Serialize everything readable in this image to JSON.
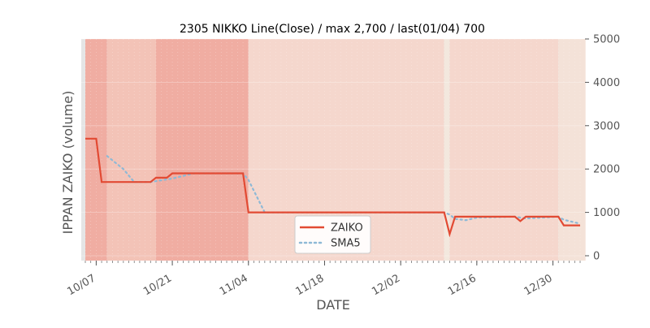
{
  "chart_data": {
    "type": "line",
    "title": "2305 NIKKO Line(Close) / max 2,700 / last(01/04) 700",
    "xlabel": "DATE",
    "ylabel": "IPPAN ZAIKO (volume)",
    "ylim": [
      0,
      5000
    ],
    "y_ticks": [
      "0",
      "1000",
      "2000",
      "3000",
      "4000",
      "5000"
    ],
    "x_ticks": [
      "10/07",
      "10/21",
      "11/04",
      "11/18",
      "12/02",
      "12/16",
      "12/30"
    ],
    "legend_placement": "lower-center",
    "grid": true,
    "colors": {
      "zaiko": "#e24a33",
      "sma5": "#8eb9d6",
      "band_strong": "#f0ada2",
      "band_medium": "#f3c3b7",
      "band_light": "#f5d7cd",
      "band_pale": "#f4e2d8",
      "band_faint": "#f3e8de",
      "plot_bg": "#e5e5e5"
    },
    "series": [
      {
        "name": "ZAIKO",
        "points": [
          [
            "10/05",
            2700
          ],
          [
            "10/07",
            2700
          ],
          [
            "10/08",
            1700
          ],
          [
            "10/17",
            1700
          ],
          [
            "10/18",
            1800
          ],
          [
            "10/20",
            1800
          ],
          [
            "10/21",
            1900
          ],
          [
            "11/03",
            1900
          ],
          [
            "11/04",
            1000
          ],
          [
            "12/10",
            1000
          ],
          [
            "12/11",
            500
          ],
          [
            "12/12",
            900
          ],
          [
            "12/23",
            900
          ],
          [
            "12/24",
            800
          ],
          [
            "12/25",
            900
          ],
          [
            "12/31",
            900
          ],
          [
            "01/01",
            700
          ],
          [
            "01/04",
            700
          ]
        ]
      },
      {
        "name": "SMA5",
        "points": [
          [
            "10/09",
            2300
          ],
          [
            "10/12",
            2000
          ],
          [
            "10/14",
            1700
          ],
          [
            "10/17",
            1700
          ],
          [
            "10/21",
            1780
          ],
          [
            "10/25",
            1900
          ],
          [
            "11/03",
            1900
          ],
          [
            "11/04",
            1750
          ],
          [
            "11/07",
            1000
          ],
          [
            "12/10",
            1000
          ],
          [
            "12/11",
            950
          ],
          [
            "12/12",
            850
          ],
          [
            "12/14",
            820
          ],
          [
            "12/16",
            880
          ],
          [
            "12/23",
            900
          ],
          [
            "12/24",
            880
          ],
          [
            "12/25",
            860
          ],
          [
            "12/31",
            900
          ],
          [
            "01/01",
            830
          ],
          [
            "01/04",
            740
          ]
        ]
      }
    ]
  }
}
